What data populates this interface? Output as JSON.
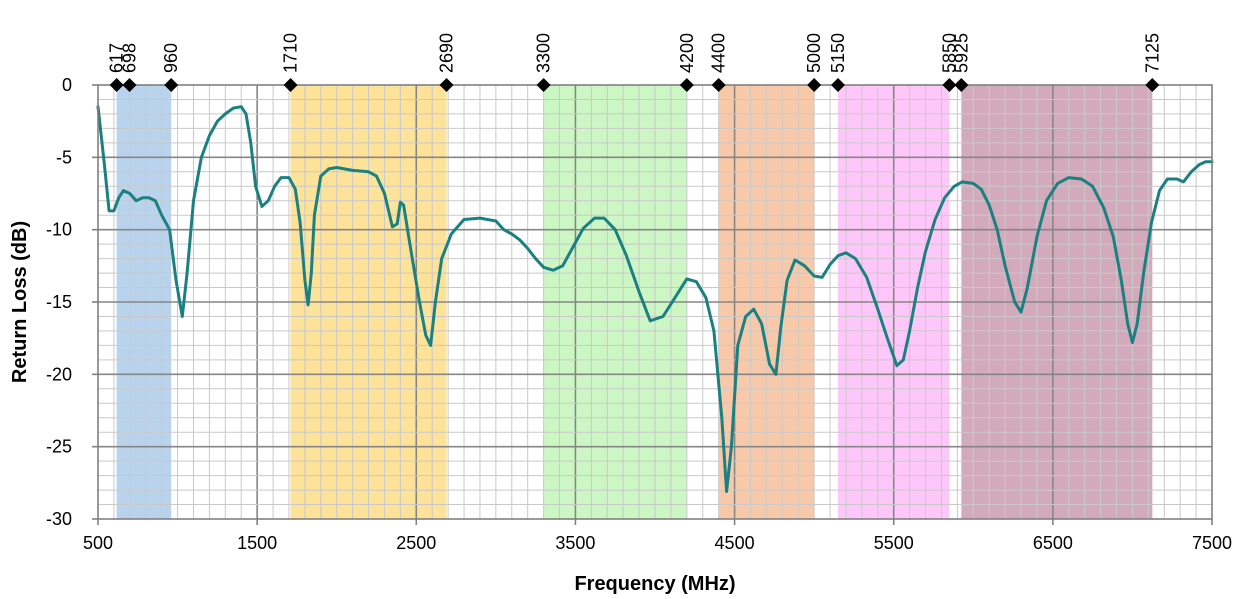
{
  "chart_data": {
    "type": "line",
    "title": "",
    "xlabel": "Frequency (MHz)",
    "ylabel": "Return Loss (dB)",
    "xlim": [
      500,
      7500
    ],
    "ylim": [
      -30,
      0
    ],
    "x_ticks": [
      500,
      1500,
      2500,
      3500,
      4500,
      5500,
      6500,
      7500
    ],
    "x_tick_labels": [
      "500",
      "1500",
      "2500",
      "3500",
      "4500",
      "5500",
      "6500",
      "7500"
    ],
    "y_ticks": [
      0,
      -5,
      -10,
      -15,
      -20,
      -25,
      -30
    ],
    "y_tick_labels": [
      "0",
      "-5",
      "-10",
      "-15",
      "-20",
      "-25",
      "-30"
    ],
    "x_major_grid_step": 1000,
    "x_minor_grid_step": 100,
    "y_major_grid_step": 5,
    "y_minor_grid_step": 1,
    "grid": true,
    "legend": "none",
    "bands": [
      {
        "from": 617,
        "to": 960,
        "color": "#b9d3ec"
      },
      {
        "from": 1710,
        "to": 2690,
        "color": "#fde29a"
      },
      {
        "from": 3300,
        "to": 4200,
        "color": "#ccf7c4"
      },
      {
        "from": 4400,
        "to": 5000,
        "color": "#f8c9a8"
      },
      {
        "from": 5150,
        "to": 5850,
        "color": "#fdc8f9"
      },
      {
        "from": 5925,
        "to": 7125,
        "color": "#d3a9bc"
      }
    ],
    "markers": [
      {
        "x": 617,
        "label": "617"
      },
      {
        "x": 698,
        "label": "698"
      },
      {
        "x": 960,
        "label": "960"
      },
      {
        "x": 1710,
        "label": "1710"
      },
      {
        "x": 2690,
        "label": "2690"
      },
      {
        "x": 3300,
        "label": "3300"
      },
      {
        "x": 4200,
        "label": "4200"
      },
      {
        "x": 4400,
        "label": "4400"
      },
      {
        "x": 5000,
        "label": "5000"
      },
      {
        "x": 5150,
        "label": "5150"
      },
      {
        "x": 5850,
        "label": "5850"
      },
      {
        "x": 5925,
        "label": "5925"
      },
      {
        "x": 7125,
        "label": "7125"
      }
    ],
    "series": [
      {
        "color": "#1a8080",
        "points": [
          [
            500,
            -1.5
          ],
          [
            540,
            -5.5
          ],
          [
            570,
            -8.7
          ],
          [
            600,
            -8.7
          ],
          [
            630,
            -7.8
          ],
          [
            660,
            -7.3
          ],
          [
            700,
            -7.5
          ],
          [
            740,
            -8.0
          ],
          [
            780,
            -7.8
          ],
          [
            820,
            -7.8
          ],
          [
            860,
            -8.0
          ],
          [
            900,
            -9.0
          ],
          [
            950,
            -10.0
          ],
          [
            990,
            -13.5
          ],
          [
            1030,
            -16.0
          ],
          [
            1060,
            -13.0
          ],
          [
            1100,
            -8.0
          ],
          [
            1150,
            -5.0
          ],
          [
            1200,
            -3.5
          ],
          [
            1250,
            -2.5
          ],
          [
            1300,
            -2.0
          ],
          [
            1350,
            -1.6
          ],
          [
            1400,
            -1.5
          ],
          [
            1430,
            -2.0
          ],
          [
            1460,
            -4.0
          ],
          [
            1490,
            -7.0
          ],
          [
            1530,
            -8.4
          ],
          [
            1570,
            -8.0
          ],
          [
            1610,
            -7.0
          ],
          [
            1650,
            -6.4
          ],
          [
            1700,
            -6.4
          ],
          [
            1740,
            -7.2
          ],
          [
            1770,
            -9.5
          ],
          [
            1800,
            -13.5
          ],
          [
            1820,
            -15.2
          ],
          [
            1840,
            -13.0
          ],
          [
            1860,
            -9.0
          ],
          [
            1900,
            -6.3
          ],
          [
            1950,
            -5.8
          ],
          [
            2000,
            -5.7
          ],
          [
            2100,
            -5.9
          ],
          [
            2200,
            -6.0
          ],
          [
            2250,
            -6.3
          ],
          [
            2300,
            -7.5
          ],
          [
            2350,
            -9.8
          ],
          [
            2380,
            -9.6
          ],
          [
            2400,
            -8.1
          ],
          [
            2420,
            -8.3
          ],
          [
            2460,
            -11.0
          ],
          [
            2520,
            -15.0
          ],
          [
            2560,
            -17.3
          ],
          [
            2590,
            -18.0
          ],
          [
            2620,
            -15.0
          ],
          [
            2660,
            -12.0
          ],
          [
            2720,
            -10.3
          ],
          [
            2800,
            -9.3
          ],
          [
            2900,
            -9.2
          ],
          [
            3000,
            -9.4
          ],
          [
            3050,
            -10.0
          ],
          [
            3100,
            -10.3
          ],
          [
            3150,
            -10.7
          ],
          [
            3200,
            -11.3
          ],
          [
            3250,
            -12.0
          ],
          [
            3300,
            -12.6
          ],
          [
            3360,
            -12.8
          ],
          [
            3420,
            -12.5
          ],
          [
            3480,
            -11.3
          ],
          [
            3550,
            -9.9
          ],
          [
            3620,
            -9.2
          ],
          [
            3680,
            -9.2
          ],
          [
            3750,
            -10.0
          ],
          [
            3820,
            -11.8
          ],
          [
            3900,
            -14.3
          ],
          [
            3970,
            -16.3
          ],
          [
            4050,
            -16.0
          ],
          [
            4120,
            -14.8
          ],
          [
            4200,
            -13.4
          ],
          [
            4260,
            -13.6
          ],
          [
            4320,
            -14.7
          ],
          [
            4370,
            -17.0
          ],
          [
            4420,
            -23.0
          ],
          [
            4450,
            -28.1
          ],
          [
            4480,
            -25.0
          ],
          [
            4520,
            -18.0
          ],
          [
            4570,
            -16.0
          ],
          [
            4620,
            -15.5
          ],
          [
            4670,
            -16.5
          ],
          [
            4720,
            -19.3
          ],
          [
            4760,
            -20.0
          ],
          [
            4790,
            -16.8
          ],
          [
            4830,
            -13.5
          ],
          [
            4880,
            -12.1
          ],
          [
            4940,
            -12.5
          ],
          [
            5000,
            -13.2
          ],
          [
            5050,
            -13.3
          ],
          [
            5100,
            -12.4
          ],
          [
            5150,
            -11.8
          ],
          [
            5200,
            -11.6
          ],
          [
            5260,
            -12.0
          ],
          [
            5330,
            -13.3
          ],
          [
            5400,
            -15.5
          ],
          [
            5460,
            -17.5
          ],
          [
            5520,
            -19.4
          ],
          [
            5560,
            -19.0
          ],
          [
            5600,
            -17.0
          ],
          [
            5650,
            -14.0
          ],
          [
            5700,
            -11.5
          ],
          [
            5760,
            -9.3
          ],
          [
            5820,
            -7.8
          ],
          [
            5880,
            -7.0
          ],
          [
            5930,
            -6.7
          ],
          [
            6000,
            -6.8
          ],
          [
            6050,
            -7.2
          ],
          [
            6100,
            -8.3
          ],
          [
            6150,
            -10.0
          ],
          [
            6200,
            -12.5
          ],
          [
            6260,
            -15.0
          ],
          [
            6300,
            -15.7
          ],
          [
            6340,
            -14.0
          ],
          [
            6400,
            -10.5
          ],
          [
            6460,
            -8.0
          ],
          [
            6530,
            -6.8
          ],
          [
            6600,
            -6.4
          ],
          [
            6680,
            -6.5
          ],
          [
            6750,
            -7.0
          ],
          [
            6820,
            -8.5
          ],
          [
            6880,
            -10.5
          ],
          [
            6930,
            -13.5
          ],
          [
            6970,
            -16.5
          ],
          [
            7000,
            -17.8
          ],
          [
            7030,
            -16.5
          ],
          [
            7070,
            -13.0
          ],
          [
            7120,
            -9.5
          ],
          [
            7170,
            -7.3
          ],
          [
            7220,
            -6.5
          ],
          [
            7280,
            -6.5
          ],
          [
            7320,
            -6.7
          ],
          [
            7370,
            -6.0
          ],
          [
            7420,
            -5.5
          ],
          [
            7460,
            -5.3
          ],
          [
            7500,
            -5.3
          ]
        ]
      }
    ]
  }
}
